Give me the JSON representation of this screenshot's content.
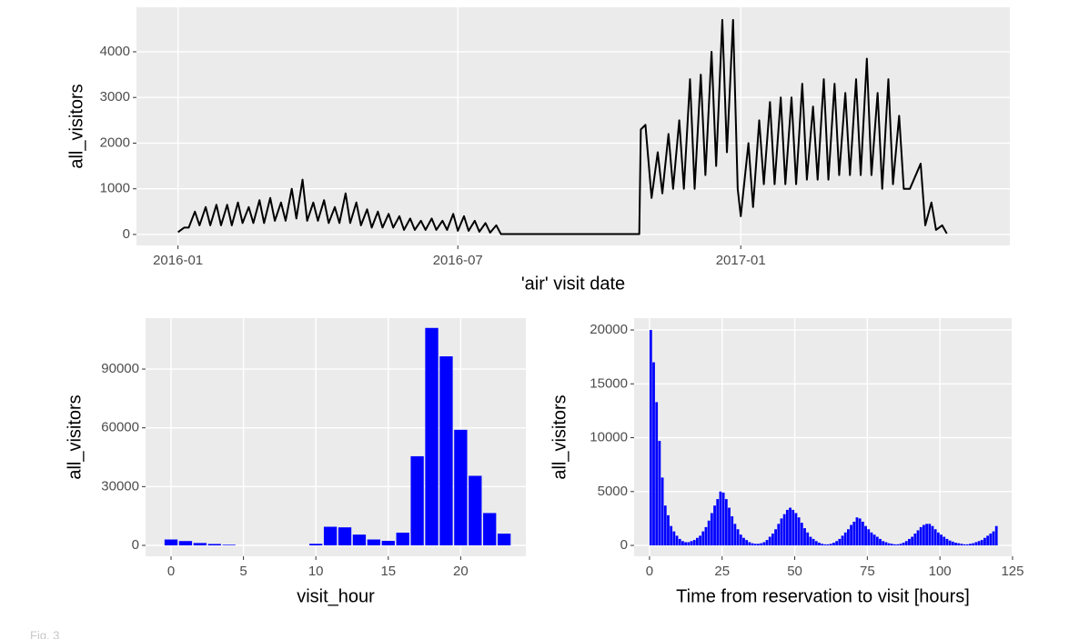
{
  "chart_data": [
    {
      "type": "line",
      "x_label": "'air' visit date",
      "y_label": "all_visitors",
      "color": "#000000",
      "x": [
        "2016-01-01",
        "2016-01-05",
        "2016-01-08",
        "2016-01-12",
        "2016-01-15",
        "2016-01-19",
        "2016-01-22",
        "2016-01-26",
        "2016-01-29",
        "2016-02-02",
        "2016-02-05",
        "2016-02-09",
        "2016-02-12",
        "2016-02-16",
        "2016-02-19",
        "2016-02-23",
        "2016-02-26",
        "2016-03-01",
        "2016-03-04",
        "2016-03-08",
        "2016-03-11",
        "2016-03-15",
        "2016-03-18",
        "2016-03-22",
        "2016-03-25",
        "2016-03-29",
        "2016-04-01",
        "2016-04-05",
        "2016-04-08",
        "2016-04-12",
        "2016-04-15",
        "2016-04-19",
        "2016-04-22",
        "2016-04-26",
        "2016-04-29",
        "2016-05-03",
        "2016-05-06",
        "2016-05-10",
        "2016-05-13",
        "2016-05-17",
        "2016-05-20",
        "2016-05-24",
        "2016-05-27",
        "2016-05-31",
        "2016-06-03",
        "2016-06-07",
        "2016-06-10",
        "2016-06-14",
        "2016-06-17",
        "2016-06-21",
        "2016-06-24",
        "2016-06-28",
        "2016-07-01",
        "2016-07-05",
        "2016-07-08",
        "2016-07-12",
        "2016-07-15",
        "2016-07-19",
        "2016-07-22",
        "2016-07-26",
        "2016-07-29",
        "2016-10-27",
        "2016-10-28",
        "2016-10-31",
        "2016-11-04",
        "2016-11-08",
        "2016-11-11",
        "2016-11-15",
        "2016-11-18",
        "2016-11-22",
        "2016-11-25",
        "2016-11-29",
        "2016-12-02",
        "2016-12-06",
        "2016-12-09",
        "2016-12-13",
        "2016-12-16",
        "2016-12-20",
        "2016-12-23",
        "2016-12-27",
        "2016-12-30",
        "2017-01-01",
        "2017-01-06",
        "2017-01-09",
        "2017-01-13",
        "2017-01-16",
        "2017-01-20",
        "2017-01-23",
        "2017-01-27",
        "2017-01-30",
        "2017-02-03",
        "2017-02-06",
        "2017-02-10",
        "2017-02-13",
        "2017-02-17",
        "2017-02-20",
        "2017-02-24",
        "2017-02-27",
        "2017-03-03",
        "2017-03-06",
        "2017-03-10",
        "2017-03-13",
        "2017-03-17",
        "2017-03-20",
        "2017-03-24",
        "2017-03-27",
        "2017-03-31",
        "2017-04-03",
        "2017-04-07",
        "2017-04-10",
        "2017-04-14",
        "2017-04-17",
        "2017-04-21",
        "2017-04-28",
        "2017-05-01",
        "2017-05-05",
        "2017-05-08",
        "2017-05-12",
        "2017-05-15"
      ],
      "values": [
        50,
        150,
        150,
        500,
        200,
        600,
        200,
        650,
        200,
        650,
        200,
        700,
        250,
        600,
        250,
        750,
        250,
        800,
        300,
        700,
        300,
        1000,
        350,
        1200,
        300,
        700,
        300,
        750,
        250,
        600,
        250,
        900,
        250,
        700,
        200,
        550,
        150,
        500,
        150,
        450,
        150,
        400,
        100,
        350,
        100,
        300,
        100,
        350,
        100,
        300,
        100,
        450,
        80,
        400,
        80,
        300,
        60,
        250,
        40,
        200,
        10,
        10,
        2300,
        2400,
        800,
        1800,
        900,
        2200,
        1000,
        2500,
        1000,
        3400,
        1000,
        3500,
        1300,
        4000,
        1500,
        4700,
        1800,
        4700,
        1000,
        400,
        2000,
        600,
        2500,
        1100,
        2900,
        1100,
        3000,
        1100,
        3000,
        1100,
        3300,
        1200,
        2800,
        1200,
        3400,
        1200,
        3300,
        1300,
        3100,
        1300,
        3400,
        1300,
        3850,
        1300,
        3100,
        1000,
        3400,
        1100,
        2600,
        1000,
        1000,
        1550,
        200,
        700,
        100,
        200,
        20
      ],
      "xlim": [
        "2015-12-05",
        "2017-06-25"
      ],
      "xticks": [
        {
          "value": "2016-01-01",
          "label": "2016-01"
        },
        {
          "value": "2016-07-01",
          "label": "2016-07"
        },
        {
          "value": "2017-01-01",
          "label": "2017-01"
        }
      ],
      "ylim": [
        -240,
        4975
      ],
      "yticks": [
        0,
        1000,
        2000,
        3000,
        4000
      ],
      "grid": true
    },
    {
      "type": "bar",
      "x_label": "visit_hour",
      "y_label": "all_visitors",
      "color": "#0000ff",
      "x": [
        0,
        1,
        2,
        3,
        4,
        10,
        11,
        12,
        13,
        14,
        15,
        16,
        17,
        18,
        19,
        20,
        21,
        22,
        23
      ],
      "values": [
        3000,
        2200,
        1200,
        700,
        300,
        800,
        9500,
        9200,
        5500,
        3000,
        2300,
        6500,
        45500,
        111000,
        96500,
        59000,
        35500,
        16500,
        6000
      ],
      "xlim": [
        -1.76,
        24.5
      ],
      "xticks": [
        0,
        5,
        10,
        15,
        20
      ],
      "ylim": [
        -5570,
        116000
      ],
      "yticks": [
        0,
        30000,
        60000,
        90000
      ],
      "grid": true
    },
    {
      "type": "histogram",
      "x_label": "Time from reservation to visit [hours]",
      "y_label": "all_visitors",
      "color": "#0000ff",
      "bins": [
        0,
        1,
        2,
        3,
        4,
        5,
        6,
        7,
        8,
        9,
        10,
        11,
        12,
        13,
        14,
        15,
        16,
        17,
        18,
        19,
        20,
        21,
        22,
        23,
        24,
        25,
        26,
        27,
        28,
        29,
        30,
        31,
        32,
        33,
        34,
        35,
        36,
        37,
        38,
        39,
        40,
        41,
        42,
        43,
        44,
        45,
        46,
        47,
        48,
        49,
        50,
        51,
        52,
        53,
        54,
        55,
        56,
        57,
        58,
        59,
        60,
        61,
        62,
        63,
        64,
        65,
        66,
        67,
        68,
        69,
        70,
        71,
        72,
        73,
        74,
        75,
        76,
        77,
        78,
        79,
        80,
        81,
        82,
        83,
        84,
        85,
        86,
        87,
        88,
        89,
        90,
        91,
        92,
        93,
        94,
        95,
        96,
        97,
        98,
        99,
        100,
        101,
        102,
        103,
        104,
        105,
        106,
        107,
        108,
        109,
        110,
        111,
        112,
        113,
        114,
        115,
        116,
        117,
        118,
        119,
        120
      ],
      "values": [
        20000,
        17000,
        13300,
        9700,
        6300,
        3700,
        2800,
        1800,
        1300,
        900,
        600,
        400,
        300,
        300,
        400,
        500,
        700,
        900,
        1300,
        1700,
        2300,
        3000,
        3700,
        4300,
        5000,
        4900,
        4300,
        3500,
        2700,
        2000,
        1500,
        1000,
        700,
        500,
        300,
        200,
        150,
        150,
        200,
        300,
        500,
        800,
        1100,
        1500,
        2000,
        2500,
        2900,
        3300,
        3500,
        3300,
        3000,
        2600,
        2100,
        1600,
        1200,
        800,
        600,
        400,
        250,
        150,
        100,
        100,
        150,
        250,
        400,
        600,
        900,
        1200,
        1500,
        1900,
        2200,
        2600,
        2500,
        2200,
        1800,
        1500,
        1200,
        1000,
        800,
        600,
        400,
        300,
        200,
        150,
        100,
        100,
        150,
        250,
        400,
        600,
        800,
        1100,
        1400,
        1700,
        1900,
        2000,
        2000,
        1800,
        1500,
        1200,
        1000,
        800,
        600,
        450,
        350,
        250,
        200,
        150,
        100,
        100,
        150,
        200,
        300,
        400,
        500,
        700,
        900,
        1100,
        1300,
        1800
      ],
      "xlim": [
        -5.3,
        124.7
      ],
      "xticks": [
        0,
        25,
        50,
        75,
        100,
        125
      ],
      "ylim": [
        -1010,
        21100
      ],
      "yticks": [
        0,
        5000,
        10000,
        15000,
        20000
      ],
      "grid": true
    }
  ],
  "caption": "Fig. 3"
}
